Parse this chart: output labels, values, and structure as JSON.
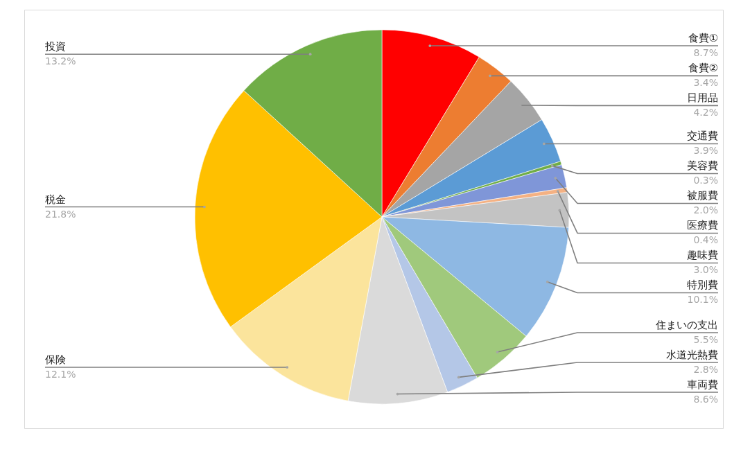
{
  "chart_data": {
    "type": "pie",
    "categories": [
      "食費①",
      "食費②",
      "日用品",
      "交通費",
      "美容費",
      "被服費",
      "医療費",
      "趣味費",
      "特別費",
      "住まいの支出",
      "水道光熱費",
      "車両費",
      "保険",
      "税金",
      "投資"
    ],
    "values": [
      8.7,
      3.4,
      4.2,
      3.9,
      0.3,
      2.0,
      0.4,
      3.0,
      10.1,
      5.5,
      2.8,
      8.6,
      12.1,
      21.8,
      13.2
    ],
    "colors": [
      "#ff0000",
      "#ed7d31",
      "#a5a5a5",
      "#5b9bd5",
      "#70ad47",
      "#7f96d8",
      "#f4b183",
      "#c3c3c3",
      "#8eb8e3",
      "#a0c97c",
      "#b4c7e7",
      "#dadada",
      "#fbe49c",
      "#ffc000",
      "#70ad47"
    ],
    "value_labels": [
      "8.7%",
      "3.4%",
      "4.2%",
      "3.9%",
      "0.3%",
      "2.0%",
      "0.4%",
      "3.0%",
      "10.1%",
      "5.5%",
      "2.8%",
      "8.6%",
      "12.1%",
      "21.8%",
      "13.2%"
    ]
  }
}
